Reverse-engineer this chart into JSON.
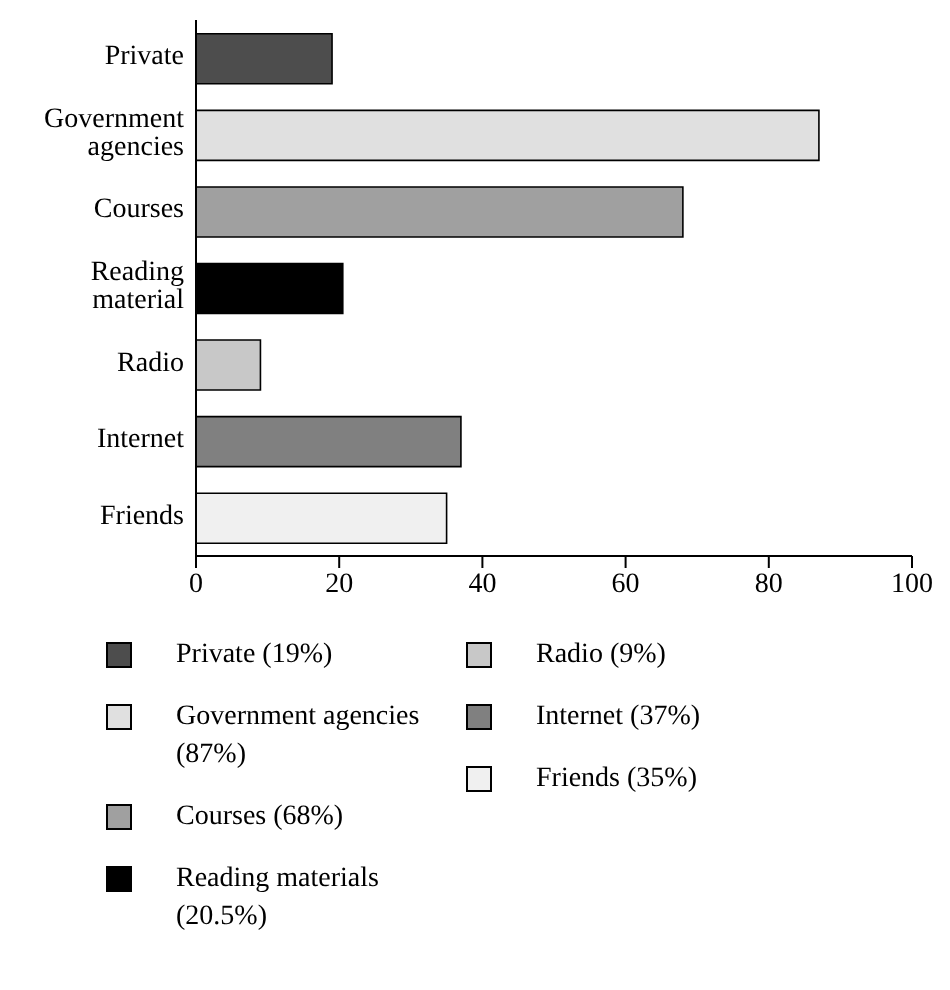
{
  "chart_data": {
    "type": "bar",
    "orientation": "horizontal",
    "stacked": true,
    "categories": [
      "Private",
      "Government agencies",
      "Courses",
      "Reading material",
      "Radio",
      "Internet",
      "Friends"
    ],
    "series": [
      {
        "name": "Private (19%)",
        "color": "#4d4d4d",
        "values": [
          19,
          null,
          null,
          null,
          null,
          null,
          null
        ]
      },
      {
        "name": "Government agencies (87%)",
        "color": "#e0e0e0",
        "values": [
          null,
          87,
          null,
          null,
          null,
          null,
          null
        ]
      },
      {
        "name": "Courses (68%)",
        "color": "#a0a0a0",
        "values": [
          null,
          null,
          68,
          null,
          null,
          null,
          null
        ]
      },
      {
        "name": "Reading materials (20.5%)",
        "color": "#000000",
        "values": [
          null,
          null,
          null,
          20.5,
          null,
          null,
          null
        ]
      },
      {
        "name": "Radio (9%)",
        "color": "#c8c8c8",
        "values": [
          null,
          null,
          null,
          null,
          9,
          null,
          null
        ]
      },
      {
        "name": "Internet (37%)",
        "color": "#808080",
        "values": [
          null,
          null,
          null,
          null,
          null,
          37,
          null
        ]
      },
      {
        "name": "Friends (35%)",
        "color": "#f0f0f0",
        "values": [
          null,
          null,
          null,
          null,
          null,
          null,
          35
        ]
      }
    ],
    "xlim": [
      0,
      100
    ],
    "xticks": [
      0,
      20,
      40,
      60,
      80,
      100
    ],
    "legend": "bottom",
    "grid": false
  }
}
